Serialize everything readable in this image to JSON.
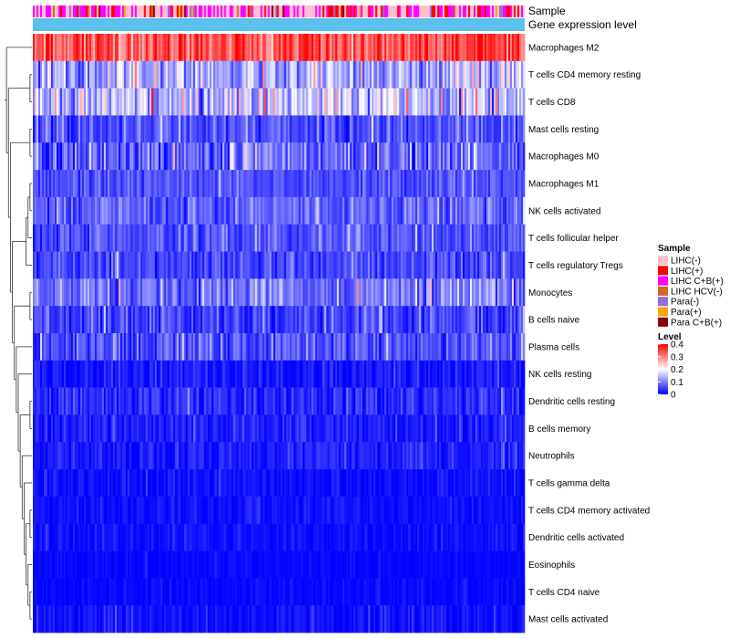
{
  "chart_data": {
    "type": "heatmap",
    "annotation_tracks": [
      "Sample",
      "Gene expression level"
    ],
    "rows": [
      {
        "name": "Macrophages M2",
        "mean_level": 0.33,
        "spread": 0.07
      },
      {
        "name": "T cells CD4 memory resting",
        "mean_level": 0.13,
        "spread": 0.08
      },
      {
        "name": "T cells CD8",
        "mean_level": 0.15,
        "spread": 0.08
      },
      {
        "name": "Mast cells resting",
        "mean_level": 0.06,
        "spread": 0.05
      },
      {
        "name": "Macrophages M0",
        "mean_level": 0.07,
        "spread": 0.07
      },
      {
        "name": "Macrophages M1",
        "mean_level": 0.06,
        "spread": 0.035
      },
      {
        "name": "NK cells activated",
        "mean_level": 0.07,
        "spread": 0.045
      },
      {
        "name": "T cells follicular helper",
        "mean_level": 0.06,
        "spread": 0.04
      },
      {
        "name": "T cells regulatory  Tregs",
        "mean_level": 0.05,
        "spread": 0.04
      },
      {
        "name": "Monocytes",
        "mean_level": 0.09,
        "spread": 0.06
      },
      {
        "name": "B cells naive",
        "mean_level": 0.05,
        "spread": 0.045
      },
      {
        "name": "Plasma cells",
        "mean_level": 0.06,
        "spread": 0.05
      },
      {
        "name": "NK cells resting",
        "mean_level": 0.015,
        "spread": 0.025
      },
      {
        "name": "Dendritic cells resting",
        "mean_level": 0.03,
        "spread": 0.035
      },
      {
        "name": "B cells memory",
        "mean_level": 0.02,
        "spread": 0.03
      },
      {
        "name": "Neutrophils",
        "mean_level": 0.02,
        "spread": 0.025
      },
      {
        "name": "T cells gamma delta",
        "mean_level": 0.01,
        "spread": 0.02
      },
      {
        "name": "T cells CD4 memory activated",
        "mean_level": 0.01,
        "spread": 0.015
      },
      {
        "name": "Dendritic cells activated",
        "mean_level": 0.01,
        "spread": 0.015
      },
      {
        "name": "Eosinophils",
        "mean_level": 0.005,
        "spread": 0.01
      },
      {
        "name": "T cells CD4 naive",
        "mean_level": 0.005,
        "spread": 0.01
      },
      {
        "name": "Mast cells activated",
        "mean_level": 0.01,
        "spread": 0.02
      }
    ],
    "n_samples": 270,
    "sample_groups": [
      {
        "name": "LIHC(-)",
        "color": "#FFC0CB"
      },
      {
        "name": "LIHC(+)",
        "color": "#FF0000"
      },
      {
        "name": "LIHC C+B(+)",
        "color": "#FF00FF"
      },
      {
        "name": "LIHC HCV(-)",
        "color": "#D2691E"
      },
      {
        "name": "Para(-)",
        "color": "#9370DB"
      },
      {
        "name": "Para(+)",
        "color": "#FFA500"
      },
      {
        "name": "Para C+B(+)",
        "color": "#8B0000"
      }
    ],
    "sample_group_weights": [
      0.42,
      0.14,
      0.3,
      0.03,
      0.06,
      0.02,
      0.03
    ],
    "gene_expression_color": "#5BC0EB",
    "level_scale": {
      "min": 0,
      "max": 0.4,
      "ticks": [
        "0.4",
        "0.3",
        "0.2",
        "0.1",
        "0"
      ],
      "colors": [
        "#0000FF",
        "#FFFFFF",
        "#FF0000"
      ]
    },
    "legend": {
      "sample_title": "Sample",
      "level_title": "Level",
      "placement": "right"
    }
  }
}
